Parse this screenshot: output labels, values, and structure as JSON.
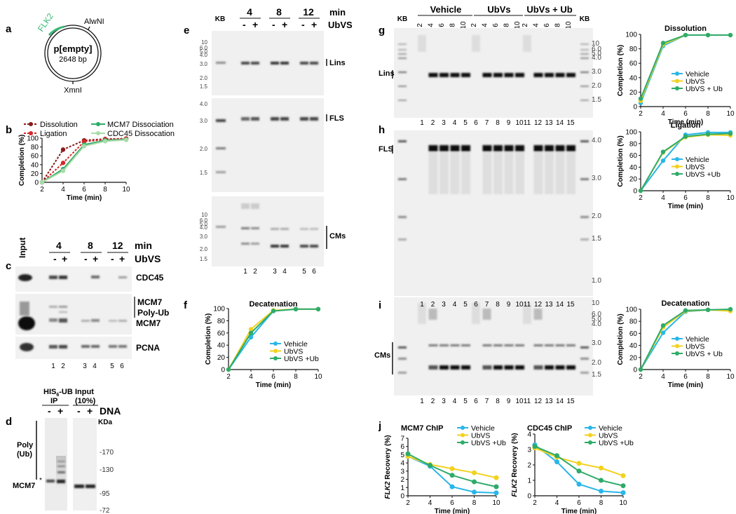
{
  "panel_letters": [
    "a",
    "b",
    "c",
    "d",
    "e",
    "f",
    "g",
    "h",
    "i",
    "j"
  ],
  "plasmid": {
    "name": "p[empty]",
    "size": "2648 bp",
    "gene": "FLK2",
    "site_top": "AlwNI",
    "site_bottom": "XmnI"
  },
  "common": {
    "min": "min",
    "ubvs": "UbVS",
    "minus": "-",
    "plus": "+",
    "kb": "KB",
    "time_axis": "Time (min)",
    "completion_axis": "Completion (%)",
    "recovery_axis": "Recovery (%)",
    "recovery_gene": "FLK2",
    "timepoints": [
      "4",
      "8",
      "12"
    ],
    "lane_numbers_6": [
      "1",
      "2",
      "3",
      "4",
      "5",
      "6"
    ],
    "lane_numbers_15": [
      "1",
      "2",
      "3",
      "4",
      "5",
      "6",
      "7",
      "8",
      "9",
      "10",
      "11",
      "12",
      "13",
      "14",
      "15"
    ],
    "gel_lane_times": [
      "2",
      "4",
      "6",
      "8",
      "10",
      "2",
      "4",
      "6",
      "8",
      "10",
      "2",
      "4",
      "6",
      "8",
      "10"
    ],
    "gel_groups": [
      "Vehicle",
      "UbVs",
      "UbVs + Ub"
    ]
  },
  "panel_c": {
    "input": "Input",
    "labels": [
      "CDC45",
      "MCM7",
      "Poly-Ub",
      "MCM7",
      "PCNA"
    ]
  },
  "panel_d": {
    "ip": "HIS",
    "ip_sub": "6",
    "ip_rest": "-UB",
    "ip_line2": "IP",
    "input": "Input",
    "input_pct": "(10%)",
    "dna": "DNA",
    "kda": "KDa",
    "markers": [
      "-170",
      "-130",
      "-95",
      "-72"
    ],
    "poly": "Poly",
    "ub": "(Ub)",
    "mcm7": "MCM7",
    "star": "*"
  },
  "panel_e": {
    "labels": [
      "Lins",
      "FLS",
      "CMs"
    ],
    "ladder_top": [
      "10",
      "6.0",
      "5.0",
      "4.0",
      "3.0",
      "2.0",
      "1.5"
    ],
    "ladder_mid": [
      "4.0",
      "3.0",
      "2.0",
      "1.5"
    ],
    "ladder_bot": [
      "10",
      "6.0",
      "5.0",
      "4.0",
      "3.0",
      "2.0",
      "1.5"
    ]
  },
  "panel_ghi": {
    "labels": [
      "Lins",
      "FLS",
      "CMs"
    ],
    "ladder_g": [
      "10",
      "6.0",
      "5.0",
      "4.0",
      "3.0",
      "2.0",
      "1.5"
    ],
    "ladder_h": [
      "4.0",
      "3.0",
      "2.0",
      "1.5",
      "1.0"
    ],
    "ladder_i": [
      "10",
      "6.0",
      "5.0",
      "4.0",
      "3.0",
      "2.0",
      "1.5"
    ]
  },
  "chart_data": [
    {
      "type": "line",
      "panel": "b",
      "title": "",
      "xlabel": "Time (min)",
      "ylabel": "Completion (%)",
      "xlim": [
        2,
        10
      ],
      "ylim": [
        0,
        100
      ],
      "x": [
        2,
        4,
        6,
        8,
        10
      ],
      "xticks": [
        "2",
        "4",
        "6",
        "8",
        "10"
      ],
      "yticks": [
        "0",
        "20",
        "40",
        "60",
        "80",
        "100"
      ],
      "series": [
        {
          "name": "Dissolution",
          "color": "#8b1a1a",
          "dashed": true,
          "values": [
            0,
            74,
            95,
            98,
            99
          ]
        },
        {
          "name": "Ligation",
          "color": "#d62828",
          "dashed": true,
          "values": [
            0,
            44,
            92,
            97,
            99
          ]
        },
        {
          "name": "MCM7 Dissociation",
          "color": "#2eab69",
          "dashed": false,
          "values": [
            0,
            30,
            85,
            95,
            97
          ]
        },
        {
          "name": "CDC45 Dissocation",
          "color": "#a9dba9",
          "dashed": false,
          "values": [
            0,
            26,
            82,
            93,
            96
          ]
        }
      ]
    },
    {
      "type": "line",
      "panel": "f",
      "title": "Decatenation",
      "xlabel": "Time (min)",
      "ylabel": "Completion (%)",
      "xlim": [
        2,
        10
      ],
      "ylim": [
        0,
        100
      ],
      "x": [
        2,
        4,
        6,
        8,
        10
      ],
      "xticks": [
        "2",
        "4",
        "6",
        "8",
        "10"
      ],
      "yticks": [
        "0",
        "20",
        "40",
        "60",
        "80",
        "100"
      ],
      "series": [
        {
          "name": "Vehicle",
          "color": "#29b6e8",
          "values": [
            0,
            53,
            96,
            99,
            99
          ]
        },
        {
          "name": "UbVS",
          "color": "#f2d21e",
          "values": [
            0,
            66,
            97,
            99,
            99
          ]
        },
        {
          "name": "UbVS +Ub",
          "color": "#2eab69",
          "values": [
            0,
            60,
            96,
            99,
            99
          ]
        }
      ]
    },
    {
      "type": "line",
      "panel": "g",
      "title": "Dissolution",
      "xlabel": "Time (min)",
      "ylabel": "Completion (%)",
      "xlim": [
        2,
        10
      ],
      "ylim": [
        0,
        100
      ],
      "x": [
        2,
        4,
        6,
        8,
        10
      ],
      "xticks": [
        "2",
        "4",
        "6",
        "8",
        "10"
      ],
      "yticks": [
        "0",
        "20",
        "40",
        "60",
        "80",
        "100"
      ],
      "series": [
        {
          "name": "Vehicle",
          "color": "#29b6e8",
          "values": [
            5,
            84,
            99,
            99,
            99
          ]
        },
        {
          "name": "UbVS",
          "color": "#f2d21e",
          "values": [
            8,
            86,
            99,
            99,
            99
          ]
        },
        {
          "name": "UbVS + Ub",
          "color": "#2eab69",
          "values": [
            11,
            88,
            99,
            99,
            99
          ]
        }
      ]
    },
    {
      "type": "line",
      "panel": "h",
      "title": "Ligation",
      "xlabel": "Time (min)",
      "ylabel": "Completion (%)",
      "xlim": [
        2,
        10
      ],
      "ylim": [
        0,
        100
      ],
      "x": [
        2,
        4,
        6,
        8,
        10
      ],
      "xticks": [
        "2",
        "4",
        "6",
        "8",
        "10"
      ],
      "yticks": [
        "0",
        "20",
        "40",
        "60",
        "80",
        "100"
      ],
      "series": [
        {
          "name": "Vehicle",
          "color": "#29b6e8",
          "values": [
            0,
            51,
            95,
            99,
            99
          ]
        },
        {
          "name": "UbVS",
          "color": "#f2d21e",
          "values": [
            0,
            65,
            91,
            95,
            94
          ]
        },
        {
          "name": "UbVS +Ub",
          "color": "#2eab69",
          "values": [
            0,
            66,
            92,
            96,
            97
          ]
        }
      ]
    },
    {
      "type": "line",
      "panel": "i",
      "title": "Decatenation",
      "xlabel": "Time (min)",
      "ylabel": "Completion (%)",
      "xlim": [
        2,
        10
      ],
      "ylim": [
        0,
        100
      ],
      "x": [
        2,
        4,
        6,
        8,
        10
      ],
      "xticks": [
        "2",
        "4",
        "6",
        "8",
        "10"
      ],
      "yticks": [
        "0",
        "20",
        "40",
        "60",
        "80",
        "100"
      ],
      "series": [
        {
          "name": "Vehicle",
          "color": "#29b6e8",
          "values": [
            0,
            61,
            96,
            99,
            99
          ]
        },
        {
          "name": "UbVS",
          "color": "#f2d21e",
          "values": [
            0,
            70,
            97,
            99,
            97
          ]
        },
        {
          "name": "UbVS + Ub",
          "color": "#2eab69",
          "values": [
            0,
            73,
            98,
            99,
            100
          ]
        }
      ]
    },
    {
      "type": "line",
      "panel": "j1",
      "title": "MCM7 ChIP",
      "xlabel": "Time (min)",
      "ylabel": "FLK2 Recovery (%)",
      "xlim": [
        2,
        10
      ],
      "ylim": [
        0,
        7
      ],
      "x": [
        2,
        4,
        6,
        8,
        10
      ],
      "xticks": [
        "2",
        "4",
        "6",
        "8",
        "10"
      ],
      "yticks": [
        "0",
        "1",
        "2",
        "3",
        "4",
        "5",
        "6",
        "7"
      ],
      "series": [
        {
          "name": "Vehicle",
          "color": "#29b6e8",
          "values": [
            4.8,
            3.6,
            1.1,
            0.45,
            0.35
          ]
        },
        {
          "name": "UbVS",
          "color": "#f2d21e",
          "values": [
            4.8,
            3.8,
            3.3,
            2.8,
            2.2
          ]
        },
        {
          "name": "UbVS +Ub",
          "color": "#2eab69",
          "values": [
            5.1,
            3.7,
            2.5,
            1.7,
            1.1
          ]
        }
      ]
    },
    {
      "type": "line",
      "panel": "j2",
      "title": "CDC45 ChIP",
      "xlabel": "Time (min)",
      "ylabel": "FLK2 Recovery (%)",
      "xlim": [
        2,
        10
      ],
      "ylim": [
        0,
        4
      ],
      "x": [
        2,
        4,
        6,
        8,
        10
      ],
      "xticks": [
        "2",
        "4",
        "6",
        "8",
        "10"
      ],
      "yticks": [
        "0",
        "1",
        "2",
        "3",
        "4"
      ],
      "series": [
        {
          "name": "Vehicle",
          "color": "#29b6e8",
          "values": [
            3.3,
            2.2,
            0.75,
            0.3,
            0.2
          ]
        },
        {
          "name": "UbVS",
          "color": "#f2d21e",
          "values": [
            3.1,
            2.5,
            2.1,
            1.8,
            1.3
          ]
        },
        {
          "name": "UbVS +Ub",
          "color": "#2eab69",
          "values": [
            3.2,
            2.6,
            1.6,
            1.0,
            0.65
          ]
        }
      ]
    }
  ]
}
